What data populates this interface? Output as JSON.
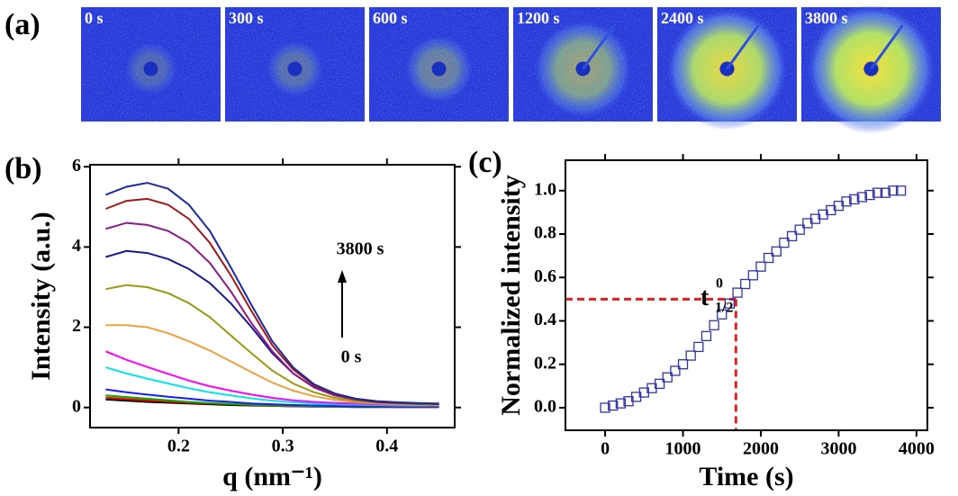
{
  "panel_labels": [
    "(a)",
    "(b)",
    "(c)"
  ],
  "image_labels": [
    "0 s",
    "300 s",
    "600 s",
    "1200 s",
    "2400 s",
    "3800 s"
  ],
  "chart_data": [
    {
      "type": "line",
      "xlabel": "q (nm⁻¹)",
      "ylabel": "Intensity (a.u.)",
      "xlim": [
        0.115,
        0.465
      ],
      "xticks": [
        0.2,
        0.3,
        0.4
      ],
      "ylim": [
        -0.5,
        6.05
      ],
      "yticks": [
        0,
        2,
        4,
        6
      ],
      "annotations": [
        "3800 s",
        "0 s"
      ],
      "x": [
        0.13,
        0.15,
        0.17,
        0.19,
        0.21,
        0.23,
        0.25,
        0.27,
        0.29,
        0.31,
        0.33,
        0.35,
        0.37,
        0.39,
        0.41,
        0.43,
        0.45
      ],
      "series": [
        {
          "color": "#000000",
          "values": [
            0.2,
            0.17,
            0.14,
            0.12,
            0.1,
            0.08,
            0.06,
            0.05,
            0.04,
            0.03,
            0.02,
            0.02,
            0.01,
            0.01,
            0.01,
            0.01,
            0.01
          ]
        },
        {
          "color": "#ff0000",
          "values": [
            0.25,
            0.21,
            0.18,
            0.15,
            0.12,
            0.1,
            0.08,
            0.06,
            0.04,
            0.03,
            0.03,
            0.02,
            0.02,
            0.02,
            0.01,
            0.01,
            0.01
          ]
        },
        {
          "color": "#00b000",
          "values": [
            0.3,
            0.26,
            0.22,
            0.18,
            0.14,
            0.11,
            0.09,
            0.07,
            0.05,
            0.04,
            0.03,
            0.02,
            0.02,
            0.02,
            0.02,
            0.02,
            0.02
          ]
        },
        {
          "color": "#1a1aff",
          "values": [
            0.45,
            0.38,
            0.32,
            0.27,
            0.22,
            0.17,
            0.14,
            0.1,
            0.08,
            0.06,
            0.05,
            0.04,
            0.03,
            0.03,
            0.02,
            0.02,
            0.02
          ]
        },
        {
          "color": "#00e5ee",
          "values": [
            1.0,
            0.85,
            0.72,
            0.6,
            0.48,
            0.38,
            0.3,
            0.23,
            0.17,
            0.13,
            0.1,
            0.08,
            0.07,
            0.06,
            0.05,
            0.05,
            0.05
          ]
        },
        {
          "color": "#ff00ff",
          "values": [
            1.4,
            1.19,
            1.01,
            0.84,
            0.67,
            0.53,
            0.42,
            0.32,
            0.24,
            0.18,
            0.14,
            0.11,
            0.1,
            0.08,
            0.07,
            0.07,
            0.06
          ]
        },
        {
          "color": "#f0a040",
          "values": [
            2.05,
            2.05,
            2.0,
            1.85,
            1.65,
            1.42,
            1.15,
            0.88,
            0.62,
            0.42,
            0.28,
            0.19,
            0.13,
            0.1,
            0.08,
            0.07,
            0.06
          ]
        },
        {
          "color": "#9a9a10",
          "values": [
            2.95,
            3.05,
            3.0,
            2.85,
            2.6,
            2.25,
            1.8,
            1.35,
            0.92,
            0.6,
            0.38,
            0.24,
            0.16,
            0.12,
            0.1,
            0.08,
            0.07
          ]
        },
        {
          "color": "#1a1a90",
          "values": [
            3.75,
            3.9,
            3.85,
            3.7,
            3.45,
            3.1,
            2.6,
            2.0,
            1.35,
            0.85,
            0.5,
            0.3,
            0.2,
            0.14,
            0.11,
            0.1,
            0.09
          ]
        },
        {
          "color": "#8a1a8a",
          "values": [
            4.45,
            4.6,
            4.55,
            4.4,
            4.1,
            3.6,
            2.9,
            2.1,
            1.4,
            0.85,
            0.5,
            0.3,
            0.2,
            0.15,
            0.12,
            0.1,
            0.09
          ]
        },
        {
          "color": "#a01a1a",
          "values": [
            4.95,
            5.15,
            5.2,
            5.05,
            4.7,
            4.1,
            3.3,
            2.4,
            1.55,
            0.95,
            0.55,
            0.33,
            0.21,
            0.15,
            0.12,
            0.1,
            0.09
          ]
        },
        {
          "color": "#1a2aa0",
          "values": [
            5.3,
            5.5,
            5.6,
            5.45,
            5.05,
            4.4,
            3.5,
            2.55,
            1.65,
            1.0,
            0.58,
            0.35,
            0.22,
            0.16,
            0.13,
            0.11,
            0.1
          ]
        }
      ]
    },
    {
      "type": "scatter",
      "xlabel": "Time (s)",
      "ylabel": "Normalized intensity",
      "xlim": [
        -510,
        4140
      ],
      "xticks": [
        0,
        1000,
        2000,
        3000,
        4000
      ],
      "ylim": [
        -0.104,
        1.14
      ],
      "yticks": [
        {
          "value": 0,
          "label": "0.0"
        },
        0.2,
        0.4,
        0.6,
        0.8,
        {
          "value": 1,
          "label": "1.0"
        }
      ],
      "annotation": {
        "text": "t",
        "sup": "0",
        "sub": "1/2"
      },
      "reference": {
        "x": 1680,
        "y": 0.5,
        "color": "#e02020"
      },
      "color": "#3333aa",
      "x": [
        0,
        100,
        200,
        300,
        400,
        500,
        600,
        700,
        800,
        900,
        1000,
        1100,
        1200,
        1300,
        1400,
        1500,
        1600,
        1700,
        1800,
        1900,
        2000,
        2100,
        2200,
        2300,
        2400,
        2500,
        2600,
        2700,
        2800,
        2900,
        3000,
        3100,
        3200,
        3300,
        3400,
        3500,
        3600,
        3700,
        3800
      ],
      "values": [
        0.0,
        0.01,
        0.02,
        0.03,
        0.05,
        0.07,
        0.09,
        0.11,
        0.14,
        0.17,
        0.2,
        0.24,
        0.28,
        0.33,
        0.38,
        0.43,
        0.48,
        0.53,
        0.57,
        0.61,
        0.65,
        0.69,
        0.72,
        0.76,
        0.79,
        0.82,
        0.85,
        0.87,
        0.89,
        0.91,
        0.93,
        0.95,
        0.96,
        0.97,
        0.98,
        0.99,
        0.99,
        1.0,
        1.0
      ]
    }
  ]
}
